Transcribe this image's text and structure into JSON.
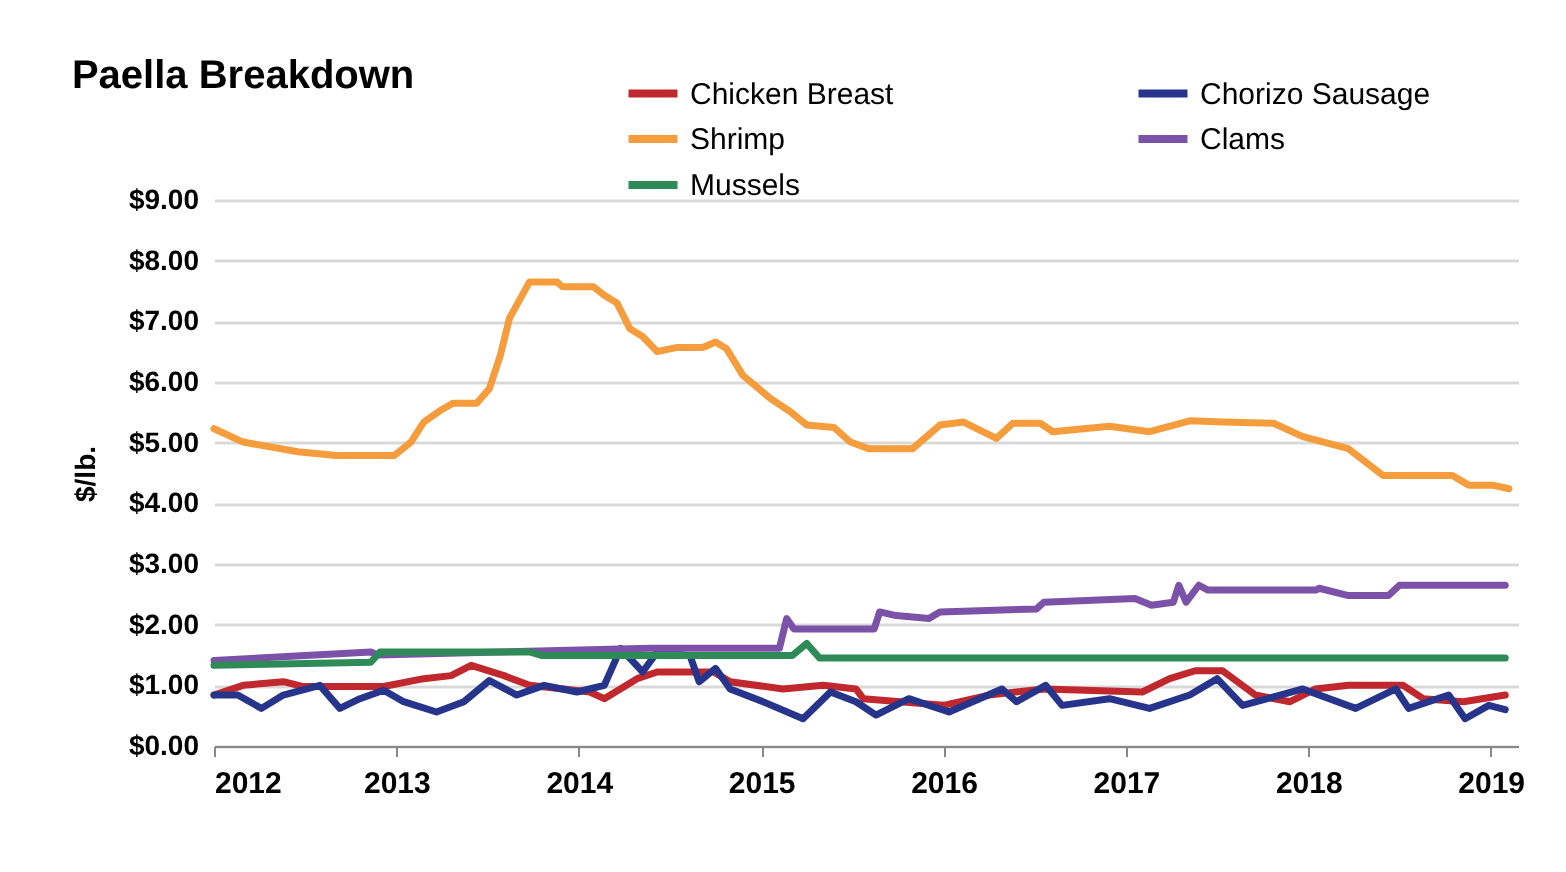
{
  "chart_data": {
    "type": "line",
    "title": "Paella Breakdown",
    "ylabel": "$/lb.",
    "legend": "top right",
    "grid": "y",
    "line_style": "solid",
    "xlim": [
      2012,
      2019.15
    ],
    "xticks": [
      2012,
      2013,
      2014,
      2015,
      2016,
      2017,
      2018,
      2019
    ],
    "ylim": [
      0,
      9
    ],
    "yticks": [
      {
        "value": 0,
        "label": "$0.00"
      },
      {
        "value": 1,
        "label": "$1.00"
      },
      {
        "value": 2,
        "label": "$2.00"
      },
      {
        "value": 3,
        "label": "$3.00"
      },
      {
        "value": 4,
        "label": "$4.00"
      },
      {
        "value": 5,
        "label": "$5.00"
      },
      {
        "value": 6,
        "label": "$6.00"
      },
      {
        "value": 7,
        "label": "$7.00"
      },
      {
        "value": 8,
        "label": "$8.00"
      },
      {
        "value": 9,
        "label": "$9.00"
      }
    ],
    "series": [
      {
        "name": "Chicken Breast",
        "color": "#c0282d",
        "x": [
          2012.0,
          2012.16,
          2012.38,
          2012.49,
          2012.93,
          2013.15,
          2013.3,
          2013.41,
          2013.59,
          2013.73,
          2014.06,
          2014.14,
          2014.32,
          2014.43,
          2014.74,
          2014.83,
          2015.12,
          2015.34,
          2015.52,
          2015.56,
          2016.0,
          2016.25,
          2016.55,
          2017.09,
          2017.24,
          2017.38,
          2017.53,
          2017.71,
          2017.9,
          2018.04,
          2018.22,
          2018.52,
          2018.63,
          2018.85,
          2019.08
        ],
        "values": [
          0.84,
          1.0,
          1.06,
          0.98,
          0.98,
          1.11,
          1.16,
          1.33,
          1.16,
          1.0,
          0.89,
          0.78,
          1.11,
          1.22,
          1.22,
          1.06,
          0.94,
          1.0,
          0.94,
          0.78,
          0.67,
          0.84,
          0.94,
          0.89,
          1.11,
          1.24,
          1.24,
          0.84,
          0.73,
          0.94,
          1.0,
          1.0,
          0.78,
          0.73,
          0.84
        ]
      },
      {
        "name": "Chorizo Sausage",
        "color": "#27348b",
        "x": [
          2012.0,
          2012.13,
          2012.26,
          2012.38,
          2012.58,
          2012.69,
          2012.8,
          2012.93,
          2013.04,
          2013.22,
          2013.37,
          2013.51,
          2013.66,
          2013.81,
          2013.99,
          2014.14,
          2014.23,
          2014.35,
          2014.43,
          2014.61,
          2014.66,
          2014.75,
          2014.83,
          2015.01,
          2015.23,
          2015.38,
          2015.52,
          2015.63,
          2015.81,
          2016.03,
          2016.32,
          2016.4,
          2016.56,
          2016.65,
          2016.91,
          2017.13,
          2017.35,
          2017.5,
          2017.64,
          2017.97,
          2018.26,
          2018.48,
          2018.55,
          2018.77,
          2018.86,
          2018.99,
          2019.08
        ],
        "values": [
          0.84,
          0.84,
          0.62,
          0.84,
          1.0,
          0.62,
          0.78,
          0.92,
          0.73,
          0.56,
          0.73,
          1.08,
          0.84,
          1.0,
          0.89,
          1.0,
          1.61,
          1.22,
          1.55,
          1.49,
          1.06,
          1.28,
          0.94,
          0.73,
          0.45,
          0.89,
          0.73,
          0.51,
          0.78,
          0.56,
          0.94,
          0.73,
          1.0,
          0.67,
          0.78,
          0.62,
          0.84,
          1.11,
          0.67,
          0.94,
          0.62,
          0.94,
          0.62,
          0.84,
          0.45,
          0.67,
          0.6
        ]
      },
      {
        "name": "Shrimp",
        "color": "#f59d3d",
        "x": [
          2012.0,
          2012.16,
          2012.46,
          2012.67,
          2012.99,
          2013.08,
          2013.15,
          2013.24,
          2013.31,
          2013.44,
          2013.51,
          2013.57,
          2013.62,
          2013.73,
          2013.88,
          2013.91,
          2014.08,
          2014.14,
          2014.21,
          2014.28,
          2014.35,
          2014.43,
          2014.54,
          2014.68,
          2014.75,
          2014.81,
          2014.9,
          2015.05,
          2015.16,
          2015.25,
          2015.4,
          2015.49,
          2015.59,
          2015.83,
          2015.98,
          2016.11,
          2016.29,
          2016.38,
          2016.53,
          2016.6,
          2016.91,
          2017.13,
          2017.35,
          2017.53,
          2017.81,
          2017.97,
          2018.22,
          2018.41,
          2018.79,
          2018.88,
          2019.01,
          2019.1
        ],
        "values": [
          5.23,
          5.01,
          4.85,
          4.79,
          4.79,
          5.01,
          5.34,
          5.53,
          5.65,
          5.65,
          5.89,
          6.44,
          7.05,
          7.65,
          7.65,
          7.57,
          7.57,
          7.43,
          7.3,
          6.88,
          6.75,
          6.5,
          6.57,
          6.57,
          6.66,
          6.55,
          6.11,
          5.73,
          5.51,
          5.29,
          5.25,
          5.01,
          4.9,
          4.9,
          5.29,
          5.34,
          5.07,
          5.32,
          5.32,
          5.18,
          5.27,
          5.18,
          5.36,
          5.34,
          5.32,
          5.1,
          4.9,
          4.46,
          4.46,
          4.3,
          4.3,
          4.24
        ]
      },
      {
        "name": "Clams",
        "color": "#7b52a8",
        "x": [
          2012.0,
          2012.86,
          2012.9,
          2014.39,
          2015.1,
          2015.14,
          2015.18,
          2015.62,
          2015.65,
          2015.74,
          2015.92,
          2015.98,
          2016.51,
          2016.55,
          2017.05,
          2017.14,
          2017.26,
          2017.29,
          2017.33,
          2017.4,
          2017.45,
          2018.04,
          2018.06,
          2018.22,
          2018.44,
          2018.5,
          2019.08
        ],
        "values": [
          1.41,
          1.55,
          1.5,
          1.61,
          1.61,
          2.1,
          1.93,
          1.93,
          2.21,
          2.15,
          2.1,
          2.21,
          2.26,
          2.37,
          2.43,
          2.32,
          2.37,
          2.65,
          2.37,
          2.65,
          2.57,
          2.57,
          2.6,
          2.48,
          2.48,
          2.65,
          2.65
        ]
      },
      {
        "name": "Mussels",
        "color": "#2e8b57",
        "x": [
          2012.0,
          2012.86,
          2012.91,
          2013.73,
          2013.8,
          2015.17,
          2015.25,
          2015.32,
          2019.08
        ],
        "values": [
          1.33,
          1.38,
          1.55,
          1.55,
          1.49,
          1.49,
          1.69,
          1.45,
          1.45
        ]
      }
    ]
  }
}
